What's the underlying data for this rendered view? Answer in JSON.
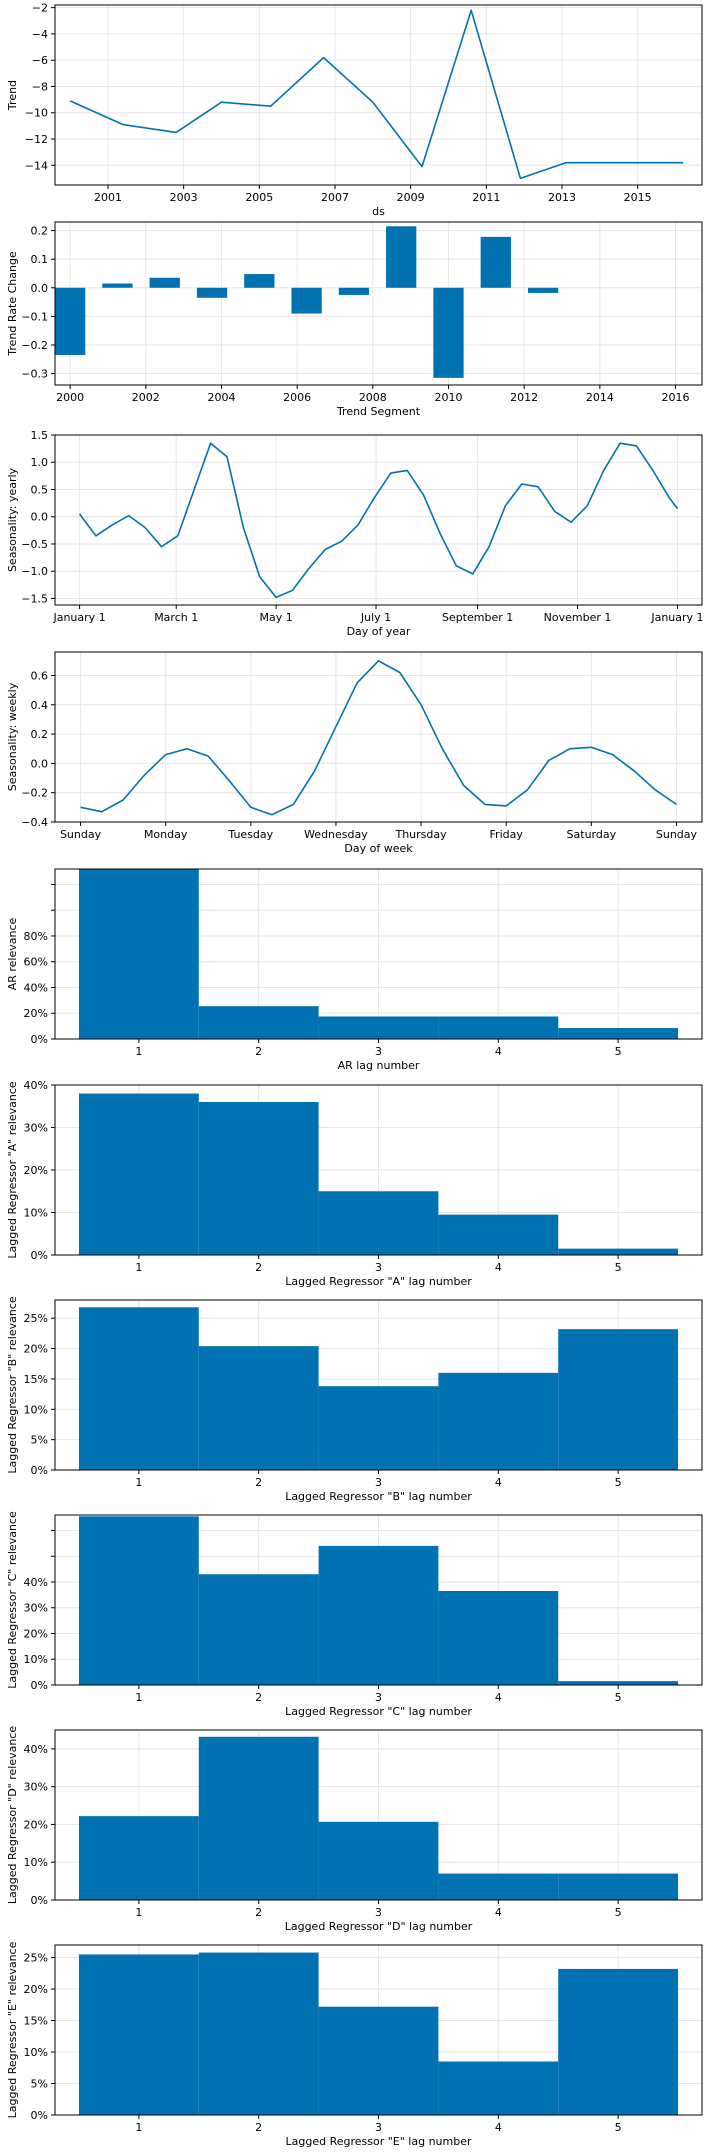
{
  "colors": {
    "line": "#0072B2",
    "bar": "#0072B2",
    "grid": "#e6e6e6",
    "axis": "#000000"
  },
  "chart_data": [
    {
      "type": "line",
      "xlabel": "ds",
      "ylabel": "Trend",
      "xlim": [
        1999.6,
        2016.7
      ],
      "ylim": [
        -15.5,
        -1.8
      ],
      "x_ticks": [
        2001,
        2003,
        2005,
        2007,
        2009,
        2011,
        2013,
        2015
      ],
      "x_tick_labels": [
        "2001",
        "2003",
        "2005",
        "2007",
        "2009",
        "2011",
        "2013",
        "2015"
      ],
      "y_ticks": [
        -14,
        -12,
        -10,
        -8,
        -6,
        -4,
        -2
      ],
      "y_tick_labels": [
        "−14",
        "−12",
        "−10",
        "−8",
        "−6",
        "−4",
        "−2"
      ],
      "grid": true,
      "x": [
        2000.0,
        2001.4,
        2002.8,
        2004.0,
        2005.3,
        2006.7,
        2008.0,
        2009.3,
        2010.6,
        2011.9,
        2013.1,
        2016.2
      ],
      "y": [
        -9.1,
        -10.9,
        -11.5,
        -9.2,
        -9.5,
        -5.8,
        -9.2,
        -14.1,
        -2.2,
        -15.0,
        -13.8,
        -13.8
      ]
    },
    {
      "type": "bar",
      "xlabel": "Trend Segment",
      "ylabel": "Trend Rate Change",
      "xlim": [
        1999.6,
        2016.7
      ],
      "ylim": [
        -0.34,
        0.23
      ],
      "x_ticks": [
        2000,
        2002,
        2004,
        2006,
        2008,
        2010,
        2012,
        2014,
        2016
      ],
      "x_tick_labels": [
        "2000",
        "2002",
        "2004",
        "2006",
        "2008",
        "2010",
        "2012",
        "2014",
        "2016"
      ],
      "y_ticks": [
        -0.3,
        -0.2,
        -0.1,
        0.0,
        0.1,
        0.2
      ],
      "y_tick_labels": [
        "−0.3",
        "−0.2",
        "−0.1",
        "0.0",
        "0.1",
        "0.2"
      ],
      "grid": true,
      "bar_width": 0.8,
      "x": [
        2000.0,
        2001.25,
        2002.5,
        2003.75,
        2005.0,
        2006.25,
        2007.5,
        2008.75,
        2010.0,
        2011.25,
        2012.5
      ],
      "values": [
        -0.235,
        0.015,
        0.035,
        -0.035,
        0.048,
        -0.09,
        -0.025,
        0.215,
        -0.315,
        0.178,
        -0.018
      ]
    },
    {
      "type": "line",
      "xlabel": "Day of year",
      "ylabel": "Seasonality: yearly",
      "xlim": [
        -15,
        380
      ],
      "ylim": [
        -1.62,
        1.5
      ],
      "x_ticks": [
        0,
        59,
        120,
        181,
        243,
        304,
        365
      ],
      "x_tick_labels": [
        "January 1",
        "March 1",
        "May 1",
        "July 1",
        "September 1",
        "November 1",
        "January 1"
      ],
      "y_ticks": [
        -1.5,
        -1.0,
        -0.5,
        0.0,
        0.5,
        1.0,
        1.5
      ],
      "y_tick_labels": [
        "−1.5",
        "−1.0",
        "−0.5",
        "0.0",
        "0.5",
        "1.0",
        "1.5"
      ],
      "grid": true,
      "x": [
        0,
        10,
        20,
        30,
        40,
        50,
        60,
        70,
        80,
        90,
        100,
        110,
        120,
        130,
        140,
        150,
        160,
        170,
        180,
        190,
        200,
        210,
        220,
        230,
        240,
        250,
        260,
        270,
        280,
        290,
        300,
        310,
        320,
        330,
        340,
        350,
        360,
        365
      ],
      "y": [
        0.05,
        -0.35,
        -0.15,
        0.02,
        -0.2,
        -0.55,
        -0.35,
        0.5,
        1.35,
        1.1,
        -0.2,
        -1.1,
        -1.48,
        -1.35,
        -0.95,
        -0.6,
        -0.45,
        -0.15,
        0.35,
        0.8,
        0.85,
        0.4,
        -0.3,
        -0.9,
        -1.05,
        -0.55,
        0.2,
        0.6,
        0.55,
        0.1,
        -0.1,
        0.2,
        0.85,
        1.35,
        1.3,
        0.85,
        0.35,
        0.15
      ]
    },
    {
      "type": "line",
      "xlabel": "Day of week",
      "ylabel": "Seasonality: weekly",
      "xlim": [
        -0.3,
        7.3
      ],
      "ylim": [
        -0.4,
        0.76
      ],
      "x_ticks": [
        0,
        1,
        2,
        3,
        4,
        5,
        6,
        7
      ],
      "x_tick_labels": [
        "Sunday",
        "Monday",
        "Tuesday",
        "Wednesday",
        "Thursday",
        "Friday",
        "Saturday",
        "Sunday"
      ],
      "y_ticks": [
        -0.4,
        -0.2,
        0.0,
        0.2,
        0.4,
        0.6
      ],
      "y_tick_labels": [
        "−0.4",
        "−0.2",
        "0.0",
        "0.2",
        "0.4",
        "0.6"
      ],
      "grid": true,
      "x": [
        0,
        0.25,
        0.5,
        0.75,
        1.0,
        1.25,
        1.5,
        1.75,
        2.0,
        2.25,
        2.5,
        2.75,
        3.0,
        3.25,
        3.5,
        3.75,
        4.0,
        4.25,
        4.5,
        4.75,
        5.0,
        5.25,
        5.5,
        5.75,
        6.0,
        6.25,
        6.5,
        6.75,
        7.0
      ],
      "y": [
        -0.3,
        -0.33,
        -0.25,
        -0.08,
        0.06,
        0.1,
        0.05,
        -0.12,
        -0.3,
        -0.35,
        -0.28,
        -0.05,
        0.25,
        0.55,
        0.7,
        0.62,
        0.4,
        0.1,
        -0.15,
        -0.28,
        -0.29,
        -0.18,
        0.02,
        0.1,
        0.11,
        0.06,
        -0.05,
        -0.18,
        -0.28
      ]
    },
    {
      "type": "bar",
      "xlabel": "AR lag number",
      "ylabel": "AR relevance",
      "xlim": [
        0.3,
        5.7
      ],
      "ylim": [
        0,
        1.32
      ],
      "x_ticks": [
        1,
        2,
        3,
        4,
        5
      ],
      "x_tick_labels": [
        "1",
        "2",
        "3",
        "4",
        "5"
      ],
      "y_ticks": [
        0,
        0.2,
        0.4,
        0.6,
        0.8,
        1.0,
        1.2
      ],
      "y_tick_labels": [
        "0%",
        "20%",
        "40%",
        "60%",
        "80%",
        "",
        ""
      ],
      "grid": true,
      "bar_width": 1.0,
      "categories": [
        "1",
        "2",
        "3",
        "4",
        "5"
      ],
      "values": [
        1.32,
        0.255,
        0.175,
        0.175,
        0.085
      ]
    },
    {
      "type": "bar",
      "xlabel": "Lagged Regressor \"A\" lag number",
      "ylabel": "Lagged Regressor \"A\" relevance",
      "xlim": [
        0.3,
        5.7
      ],
      "ylim": [
        0,
        0.4
      ],
      "x_ticks": [
        1,
        2,
        3,
        4,
        5
      ],
      "x_tick_labels": [
        "1",
        "2",
        "3",
        "4",
        "5"
      ],
      "y_ticks": [
        0,
        0.1,
        0.2,
        0.3,
        0.4
      ],
      "y_tick_labels": [
        "0%",
        "10%",
        "20%",
        "30%",
        "40%"
      ],
      "grid": true,
      "bar_width": 1.0,
      "categories": [
        "1",
        "2",
        "3",
        "4",
        "5"
      ],
      "values": [
        0.38,
        0.36,
        0.15,
        0.095,
        0.015
      ]
    },
    {
      "type": "bar",
      "xlabel": "Lagged Regressor \"B\" lag number",
      "ylabel": "Lagged Regressor \"B\" relevance",
      "xlim": [
        0.3,
        5.7
      ],
      "ylim": [
        0,
        0.28
      ],
      "x_ticks": [
        1,
        2,
        3,
        4,
        5
      ],
      "x_tick_labels": [
        "1",
        "2",
        "3",
        "4",
        "5"
      ],
      "y_ticks": [
        0,
        0.05,
        0.1,
        0.15,
        0.2,
        0.25
      ],
      "y_tick_labels": [
        "0%",
        "5%",
        "10%",
        "15%",
        "20%",
        "25%"
      ],
      "grid": true,
      "bar_width": 1.0,
      "categories": [
        "1",
        "2",
        "3",
        "4",
        "5"
      ],
      "values": [
        0.268,
        0.204,
        0.138,
        0.16,
        0.232
      ]
    },
    {
      "type": "bar",
      "xlabel": "Lagged Regressor \"C\" lag number",
      "ylabel": "Lagged Regressor \"C\" relevance",
      "xlim": [
        0.3,
        5.7
      ],
      "ylim": [
        0,
        0.66
      ],
      "x_ticks": [
        1,
        2,
        3,
        4,
        5
      ],
      "x_tick_labels": [
        "1",
        "2",
        "3",
        "4",
        "5"
      ],
      "y_ticks": [
        0,
        0.1,
        0.2,
        0.3,
        0.4,
        0.5,
        0.6
      ],
      "y_tick_labels": [
        "0%",
        "10%",
        "20%",
        "30%",
        "40%",
        "",
        ""
      ],
      "grid": true,
      "bar_width": 1.0,
      "categories": [
        "1",
        "2",
        "3",
        "4",
        "5"
      ],
      "values": [
        0.655,
        0.43,
        0.54,
        0.365,
        0.015
      ]
    },
    {
      "type": "bar",
      "xlabel": "Lagged Regressor \"D\" lag number",
      "ylabel": "Lagged Regressor \"D\" relevance",
      "xlim": [
        0.3,
        5.7
      ],
      "ylim": [
        0,
        0.45
      ],
      "x_ticks": [
        1,
        2,
        3,
        4,
        5
      ],
      "x_tick_labels": [
        "1",
        "2",
        "3",
        "4",
        "5"
      ],
      "y_ticks": [
        0,
        0.1,
        0.2,
        0.3,
        0.4
      ],
      "y_tick_labels": [
        "0%",
        "10%",
        "20%",
        "30%",
        "40%"
      ],
      "grid": true,
      "bar_width": 1.0,
      "categories": [
        "1",
        "2",
        "3",
        "4",
        "5"
      ],
      "values": [
        0.222,
        0.432,
        0.207,
        0.07,
        0.07
      ]
    },
    {
      "type": "bar",
      "xlabel": "Lagged Regressor \"E\" lag number",
      "ylabel": "Lagged Regressor \"E\" relevance",
      "xlim": [
        0.3,
        5.7
      ],
      "ylim": [
        0,
        0.27
      ],
      "x_ticks": [
        1,
        2,
        3,
        4,
        5
      ],
      "x_tick_labels": [
        "1",
        "2",
        "3",
        "4",
        "5"
      ],
      "y_ticks": [
        0,
        0.05,
        0.1,
        0.15,
        0.2,
        0.25
      ],
      "y_tick_labels": [
        "0%",
        "5%",
        "10%",
        "15%",
        "20%",
        "25%"
      ],
      "grid": true,
      "bar_width": 1.0,
      "categories": [
        "1",
        "2",
        "3",
        "4",
        "5"
      ],
      "values": [
        0.255,
        0.258,
        0.172,
        0.085,
        0.232
      ]
    }
  ]
}
